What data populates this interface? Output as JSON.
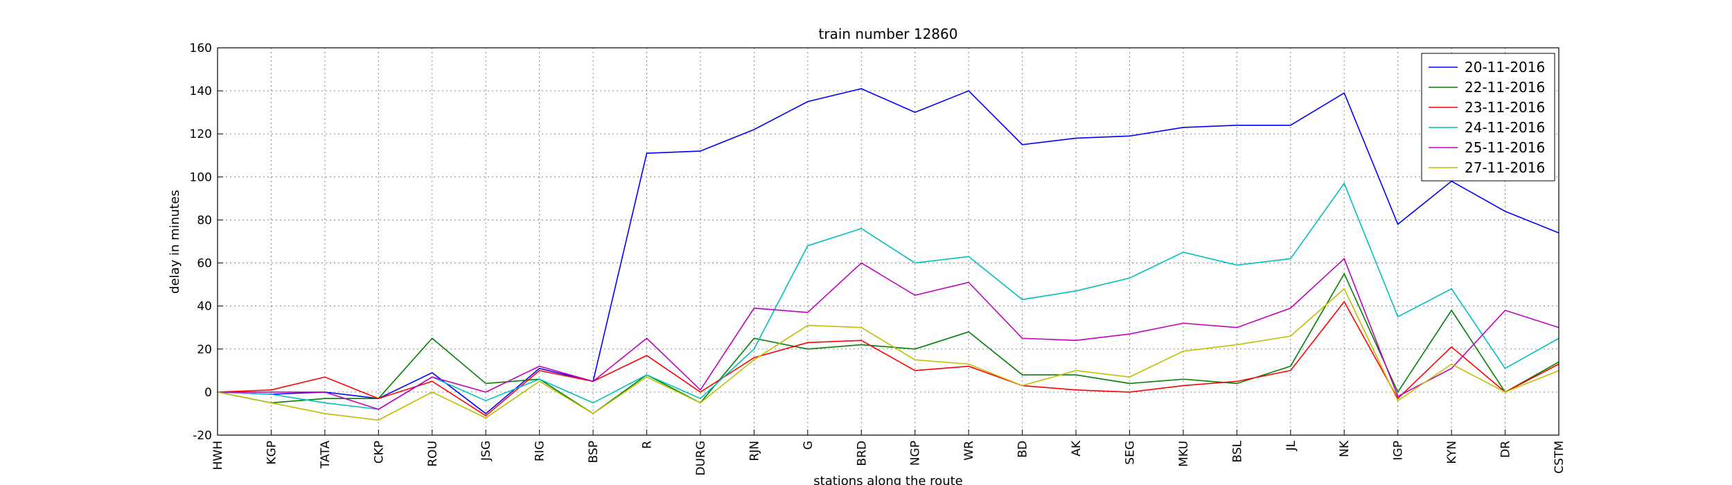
{
  "chart_data": {
    "type": "line",
    "title": "train number 12860",
    "x_label": "stations along the route",
    "y_label": "delay in minutes",
    "categories": [
      "HWH",
      "KGP",
      "TATA",
      "CKP",
      "ROU",
      "JSG",
      "RIG",
      "BSP",
      "R",
      "DURG",
      "RJN",
      "G",
      "BRD",
      "NGP",
      "WR",
      "BD",
      "AK",
      "SEG",
      "MKU",
      "BSL",
      "JL",
      "NK",
      "IGP",
      "KYN",
      "DR",
      "CSTM"
    ],
    "series": [
      {
        "name": "20-11-2016",
        "color": "#0000ff",
        "values": [
          0,
          -1,
          0,
          -3,
          9,
          -10,
          11,
          5,
          111,
          112,
          122,
          135,
          141,
          130,
          140,
          115,
          118,
          119,
          123,
          124,
          124,
          139,
          78,
          98,
          84,
          74
        ]
      },
      {
        "name": "22-11-2016",
        "color": "#008000",
        "values": [
          0,
          -5,
          -3,
          -3,
          25,
          4,
          6,
          -10,
          8,
          -5,
          25,
          20,
          22,
          20,
          28,
          8,
          8,
          4,
          6,
          4,
          12,
          55,
          0,
          38,
          0,
          14
        ]
      },
      {
        "name": "23-11-2016",
        "color": "#ff0000",
        "values": [
          0,
          1,
          7,
          -3,
          5,
          -11,
          10,
          5,
          17,
          0,
          16,
          23,
          24,
          10,
          12,
          3,
          1,
          0,
          3,
          5,
          10,
          42,
          -3,
          21,
          0,
          13
        ]
      },
      {
        "name": "24-11-2016",
        "color": "#00bfbf",
        "values": [
          0,
          -1,
          -5,
          -8,
          7,
          -4,
          6,
          -5,
          8,
          -3,
          20,
          68,
          76,
          60,
          63,
          43,
          47,
          53,
          65,
          59,
          62,
          97,
          35,
          48,
          11,
          25
        ]
      },
      {
        "name": "25-11-2016",
        "color": "#bf00bf",
        "values": [
          0,
          0,
          0,
          -8,
          7,
          0,
          12,
          5,
          25,
          1,
          39,
          37,
          60,
          45,
          51,
          25,
          24,
          27,
          32,
          30,
          39,
          62,
          -2,
          11,
          38,
          30
        ]
      },
      {
        "name": "27-11-2016",
        "color": "#bfbf00",
        "values": [
          0,
          -5,
          -10,
          -13,
          0,
          -12,
          5,
          -10,
          7,
          -5,
          15,
          31,
          30,
          15,
          13,
          3,
          10,
          7,
          19,
          22,
          26,
          48,
          -4,
          13,
          0,
          10
        ]
      }
    ],
    "ylim": [
      -20,
      160
    ],
    "yticks": [
      -20,
      0,
      20,
      40,
      60,
      80,
      100,
      120,
      140,
      160
    ],
    "grid": true,
    "legend": "upper right"
  }
}
